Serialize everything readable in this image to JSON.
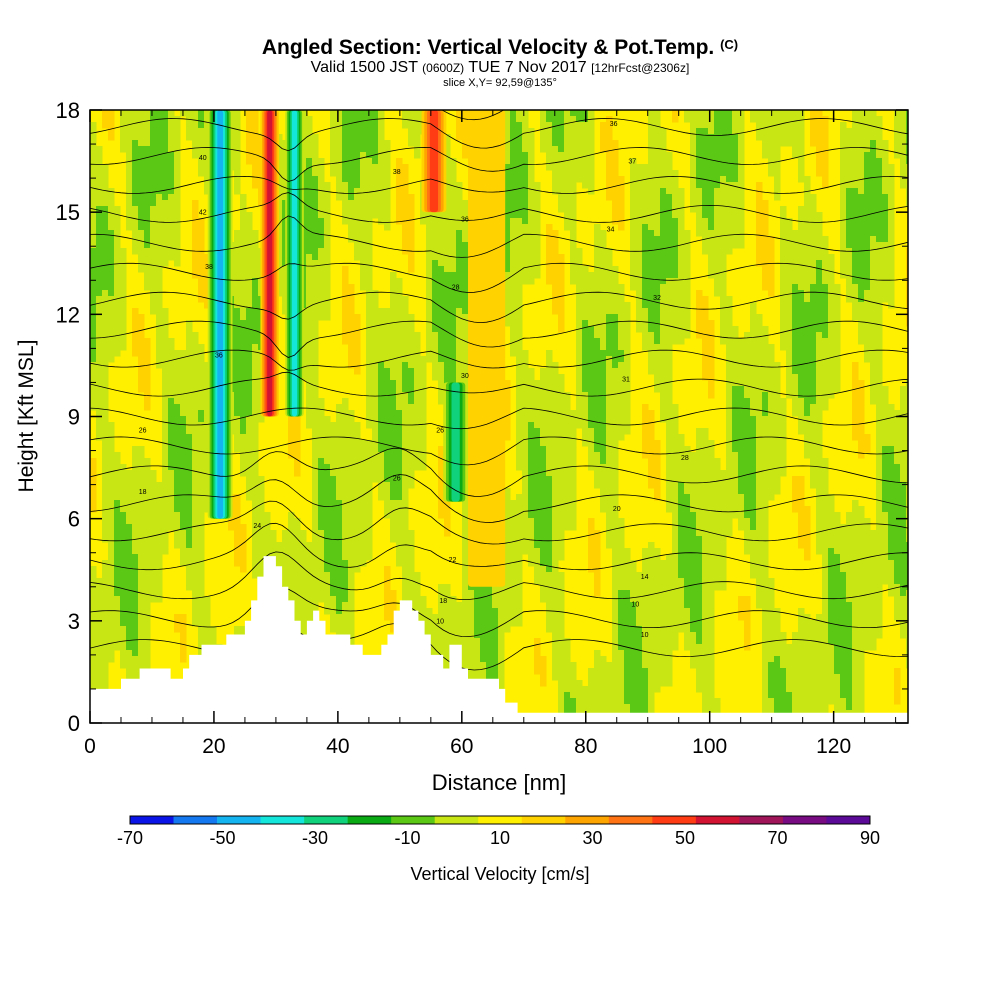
{
  "title": {
    "main": "Angled Section: Vertical Velocity & Pot.Temp.",
    "main_suffix": "(C)",
    "valid_prefix": "Valid 1500 JST",
    "valid_utc": "(0600Z)",
    "valid_date": "TUE 7 Nov 2017",
    "forecast": "[12hrFcst@2306z]",
    "slice": "slice X,Y= 92,59@135°"
  },
  "chart_data": {
    "type": "heatmap",
    "xlabel": "Distance [nm]",
    "ylabel": "Height [Kft MSL]",
    "xlim": [
      0,
      132
    ],
    "ylim": [
      0,
      18
    ],
    "x_ticks": [
      0,
      20,
      40,
      60,
      80,
      100,
      120
    ],
    "y_ticks": [
      0,
      3,
      6,
      9,
      12,
      15,
      18
    ],
    "colorbar": {
      "label": "Vertical Velocity [cm/s]",
      "tick_labels": [
        "-70",
        "-50",
        "-30",
        "-10",
        "10",
        "30",
        "50",
        "70",
        "90"
      ],
      "bins": [
        -80,
        -70,
        -60,
        -50,
        -40,
        -30,
        -20,
        -10,
        0,
        10,
        20,
        30,
        40,
        50,
        60,
        70,
        80,
        90
      ],
      "colors": [
        "#0a14e6",
        "#1478f0",
        "#14b4f0",
        "#14e6dc",
        "#10d27c",
        "#0aaa14",
        "#5ac814",
        "#c8e614",
        "#fff000",
        "#ffd200",
        "#ffa500",
        "#ff7314",
        "#ff3c14",
        "#d21432",
        "#a0145a",
        "#780a82",
        "#5a0a96"
      ]
    },
    "vertical_velocity_bands": [
      {
        "x": [
          19,
          23
        ],
        "min_velocity": -50,
        "top": 18,
        "bottom": 6
      },
      {
        "x": [
          27.5,
          30.5
        ],
        "min_velocity": 50,
        "top": 18,
        "bottom": 9
      },
      {
        "x": [
          31.5,
          34.5
        ],
        "min_velocity": -40,
        "top": 18,
        "bottom": 9
      },
      {
        "x": [
          53.5,
          57.5
        ],
        "min_velocity": 40,
        "top": 18,
        "bottom": 15
      },
      {
        "x": [
          57,
          61
        ],
        "min_velocity": -30,
        "top": 10,
        "bottom": 6.5
      },
      {
        "x": [
          61,
          67
        ],
        "min_velocity": 10,
        "top": 18,
        "bottom": 4
      }
    ],
    "terrain_height_kft": [
      [
        0,
        1.0
      ],
      [
        5,
        1.0
      ],
      [
        5,
        1.3
      ],
      [
        8,
        1.3
      ],
      [
        8,
        1.6
      ],
      [
        13,
        1.6
      ],
      [
        13,
        1.3
      ],
      [
        15,
        1.3
      ],
      [
        15,
        1.6
      ],
      [
        16,
        1.6
      ],
      [
        16,
        2.0
      ],
      [
        18,
        2.0
      ],
      [
        18,
        2.3
      ],
      [
        22,
        2.3
      ],
      [
        22,
        2.6
      ],
      [
        25,
        2.6
      ],
      [
        25,
        3.0
      ],
      [
        26,
        3.0
      ],
      [
        26,
        3.6
      ],
      [
        27,
        3.6
      ],
      [
        27,
        4.3
      ],
      [
        28,
        4.3
      ],
      [
        28,
        4.9
      ],
      [
        30,
        4.9
      ],
      [
        30,
        4.6
      ],
      [
        31,
        4.6
      ],
      [
        31,
        4.0
      ],
      [
        32,
        4.0
      ],
      [
        32,
        3.6
      ],
      [
        33,
        3.6
      ],
      [
        33,
        3.0
      ],
      [
        34,
        3.0
      ],
      [
        34,
        2.6
      ],
      [
        35,
        2.6
      ],
      [
        35,
        3.0
      ],
      [
        36,
        3.0
      ],
      [
        36,
        3.3
      ],
      [
        37,
        3.3
      ],
      [
        37,
        3.0
      ],
      [
        38,
        3.0
      ],
      [
        38,
        2.6
      ],
      [
        42,
        2.6
      ],
      [
        42,
        2.3
      ],
      [
        44,
        2.3
      ],
      [
        44,
        2.0
      ],
      [
        47,
        2.0
      ],
      [
        47,
        2.3
      ],
      [
        48,
        2.3
      ],
      [
        48,
        2.6
      ],
      [
        49,
        2.6
      ],
      [
        49,
        3.3
      ],
      [
        50,
        3.3
      ],
      [
        50,
        3.6
      ],
      [
        52,
        3.6
      ],
      [
        52,
        3.3
      ],
      [
        53,
        3.3
      ],
      [
        53,
        3.0
      ],
      [
        54,
        3.0
      ],
      [
        54,
        2.6
      ],
      [
        55,
        2.6
      ],
      [
        55,
        2.0
      ],
      [
        57,
        2.0
      ],
      [
        57,
        1.6
      ],
      [
        58,
        1.6
      ],
      [
        58,
        2.3
      ],
      [
        60,
        2.3
      ],
      [
        60,
        1.6
      ],
      [
        61,
        1.6
      ],
      [
        61,
        1.3
      ],
      [
        66,
        1.3
      ],
      [
        66,
        1.0
      ],
      [
        67,
        1.0
      ],
      [
        67,
        0.6
      ],
      [
        69,
        0.6
      ],
      [
        69,
        0.3
      ],
      [
        132,
        0.3
      ]
    ],
    "isentrope_labels": [
      {
        "text": "40",
        "x": 18.2,
        "y": 16.6
      },
      {
        "text": "42",
        "x": 18.2,
        "y": 15.0
      },
      {
        "text": "38",
        "x": 19.2,
        "y": 13.4
      },
      {
        "text": "36",
        "x": 20.8,
        "y": 10.8
      },
      {
        "text": "26",
        "x": 8.5,
        "y": 8.6
      },
      {
        "text": "18",
        "x": 8.5,
        "y": 6.8
      },
      {
        "text": "24",
        "x": 27.0,
        "y": 5.8
      },
      {
        "text": "38",
        "x": 49.5,
        "y": 16.2
      },
      {
        "text": "36",
        "x": 60.5,
        "y": 14.8
      },
      {
        "text": "28",
        "x": 59.0,
        "y": 12.8
      },
      {
        "text": "30",
        "x": 60.5,
        "y": 10.2
      },
      {
        "text": "26",
        "x": 56.5,
        "y": 8.6
      },
      {
        "text": "26",
        "x": 49.5,
        "y": 7.2
      },
      {
        "text": "22",
        "x": 58.5,
        "y": 4.8
      },
      {
        "text": "18",
        "x": 57.0,
        "y": 3.6
      },
      {
        "text": "10",
        "x": 56.5,
        "y": 3.0
      },
      {
        "text": "36",
        "x": 84.5,
        "y": 17.6
      },
      {
        "text": "37",
        "x": 87.5,
        "y": 16.5
      },
      {
        "text": "34",
        "x": 84.0,
        "y": 14.5
      },
      {
        "text": "32",
        "x": 91.5,
        "y": 12.5
      },
      {
        "text": "31",
        "x": 86.5,
        "y": 10.1
      },
      {
        "text": "28",
        "x": 96.0,
        "y": 7.8
      },
      {
        "text": "20",
        "x": 85.0,
        "y": 6.3
      },
      {
        "text": "14",
        "x": 89.5,
        "y": 4.3
      },
      {
        "text": "10",
        "x": 88.0,
        "y": 3.5
      },
      {
        "text": "10",
        "x": 89.5,
        "y": 2.6
      }
    ]
  }
}
